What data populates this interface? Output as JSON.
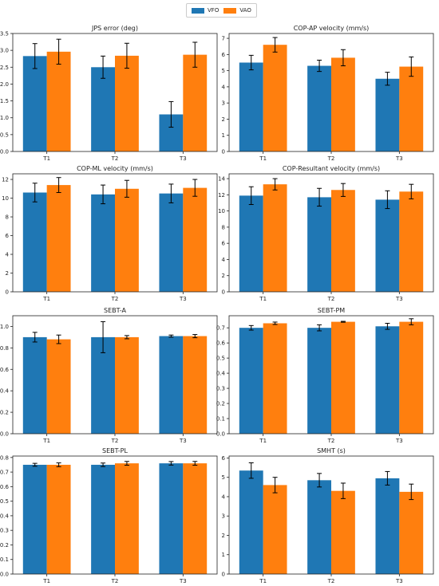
{
  "legend": {
    "placement": "top-center",
    "entries": [
      "VFO",
      "VAO"
    ]
  },
  "colors": {
    "VFO": "#1f77b4",
    "VAO": "#ff7f0e",
    "error": "#000000"
  },
  "chart_data": [
    {
      "type": "bar",
      "title": "JPS error (deg)",
      "categories": [
        "T1",
        "T2",
        "T3"
      ],
      "series": [
        {
          "name": "VFO",
          "values": [
            2.83,
            2.5,
            1.1
          ],
          "errors": [
            0.37,
            0.33,
            0.38
          ]
        },
        {
          "name": "VAO",
          "values": [
            2.96,
            2.84,
            2.87
          ],
          "errors": [
            0.37,
            0.37,
            0.37
          ]
        }
      ],
      "ylim": [
        0,
        3.5
      ],
      "yticks": [
        0.0,
        0.5,
        1.0,
        1.5,
        2.0,
        2.5,
        3.0,
        3.5
      ],
      "ytick_labels": [
        "0.0",
        "0.5",
        "1.0",
        "1.5",
        "2.0",
        "2.5",
        "3.0",
        "3.5"
      ]
    },
    {
      "type": "bar",
      "title": "COP-AP velocity (mm/s)",
      "categories": [
        "T1",
        "T2",
        "T3"
      ],
      "series": [
        {
          "name": "VFO",
          "values": [
            5.5,
            5.3,
            4.5
          ],
          "errors": [
            0.45,
            0.35,
            0.4
          ]
        },
        {
          "name": "VAO",
          "values": [
            6.6,
            5.8,
            5.25
          ],
          "errors": [
            0.45,
            0.5,
            0.6
          ]
        }
      ],
      "ylim": [
        0,
        7.3
      ],
      "yticks": [
        0,
        1,
        2,
        3,
        4,
        5,
        6,
        7
      ],
      "ytick_labels": [
        "0",
        "1",
        "2",
        "3",
        "4",
        "5",
        "6",
        "7"
      ]
    },
    {
      "type": "bar",
      "title": "COP-ML velocity (mm/s)",
      "categories": [
        "T1",
        "T2",
        "T3"
      ],
      "series": [
        {
          "name": "VFO",
          "values": [
            10.6,
            10.4,
            10.5
          ],
          "errors": [
            1.0,
            1.0,
            1.0
          ]
        },
        {
          "name": "VAO",
          "values": [
            11.4,
            11.0,
            11.1
          ],
          "errors": [
            0.8,
            0.9,
            0.9
          ]
        }
      ],
      "ylim": [
        0,
        12.6
      ],
      "yticks": [
        0,
        2,
        4,
        6,
        8,
        10,
        12
      ],
      "ytick_labels": [
        "0",
        "2",
        "4",
        "6",
        "8",
        "10",
        "12"
      ]
    },
    {
      "type": "bar",
      "title": "COP-Resultant velocity (mm/s)",
      "categories": [
        "T1",
        "T2",
        "T3"
      ],
      "series": [
        {
          "name": "VFO",
          "values": [
            11.9,
            11.7,
            11.4
          ],
          "errors": [
            1.1,
            1.1,
            1.1
          ]
        },
        {
          "name": "VAO",
          "values": [
            13.3,
            12.6,
            12.4
          ],
          "errors": [
            0.7,
            0.8,
            0.9
          ]
        }
      ],
      "ylim": [
        0,
        14.6
      ],
      "yticks": [
        0,
        2,
        4,
        6,
        8,
        10,
        12,
        14
      ],
      "ytick_labels": [
        "0",
        "2",
        "4",
        "6",
        "8",
        "10",
        "12",
        "14"
      ]
    },
    {
      "type": "bar",
      "title": "SEBT-A",
      "categories": [
        "T1",
        "T2",
        "T3"
      ],
      "series": [
        {
          "name": "VFO",
          "values": [
            0.9,
            0.9,
            0.91
          ],
          "errors": [
            0.045,
            0.145,
            0.01
          ]
        },
        {
          "name": "VAO",
          "values": [
            0.88,
            0.9,
            0.91
          ],
          "errors": [
            0.04,
            0.015,
            0.015
          ]
        }
      ],
      "ylim": [
        0,
        1.1
      ],
      "yticks": [
        0.0,
        0.2,
        0.4,
        0.6,
        0.8,
        1.0
      ],
      "ytick_labels": [
        "0.0",
        "0.2",
        "0.4",
        "0.6",
        "0.8",
        "1.0"
      ]
    },
    {
      "type": "bar",
      "title": "SEBT-PM",
      "categories": [
        "T1",
        "T2",
        "T3"
      ],
      "series": [
        {
          "name": "VFO",
          "values": [
            0.7,
            0.7,
            0.71
          ],
          "errors": [
            0.015,
            0.02,
            0.02
          ]
        },
        {
          "name": "VAO",
          "values": [
            0.73,
            0.74,
            0.74
          ],
          "errors": [
            0.008,
            0.003,
            0.02
          ]
        }
      ],
      "ylim": [
        0,
        0.78
      ],
      "yticks": [
        0.0,
        0.1,
        0.2,
        0.3,
        0.4,
        0.5,
        0.6,
        0.7
      ],
      "ytick_labels": [
        "0.0",
        "0.1",
        "0.2",
        "0.3",
        "0.4",
        "0.5",
        "0.6",
        "0.7"
      ]
    },
    {
      "type": "bar",
      "title": "SEBT-PL",
      "categories": [
        "T1",
        "T2",
        "T3"
      ],
      "series": [
        {
          "name": "VFO",
          "values": [
            0.75,
            0.75,
            0.76
          ],
          "errors": [
            0.01,
            0.012,
            0.012
          ]
        },
        {
          "name": "VAO",
          "values": [
            0.75,
            0.76,
            0.76
          ],
          "errors": [
            0.013,
            0.013,
            0.013
          ]
        }
      ],
      "ylim": [
        0,
        0.81
      ],
      "yticks": [
        0.0,
        0.1,
        0.2,
        0.3,
        0.4,
        0.5,
        0.6,
        0.7,
        0.8
      ],
      "ytick_labels": [
        "0.0",
        "0.1",
        "0.2",
        "0.3",
        "0.4",
        "0.5",
        "0.6",
        "0.7",
        "0.8"
      ]
    },
    {
      "type": "bar",
      "title": "SMHT (s)",
      "categories": [
        "T1",
        "T2",
        "T3"
      ],
      "series": [
        {
          "name": "VFO",
          "values": [
            5.35,
            4.85,
            4.95
          ],
          "errors": [
            0.4,
            0.35,
            0.35
          ]
        },
        {
          "name": "VAO",
          "values": [
            4.6,
            4.3,
            4.25
          ],
          "errors": [
            0.4,
            0.4,
            0.4
          ]
        }
      ],
      "ylim": [
        0,
        6.1
      ],
      "yticks": [
        0,
        1,
        2,
        3,
        4,
        5,
        6
      ],
      "ytick_labels": [
        "0",
        "1",
        "2",
        "3",
        "4",
        "5",
        "6"
      ]
    }
  ]
}
